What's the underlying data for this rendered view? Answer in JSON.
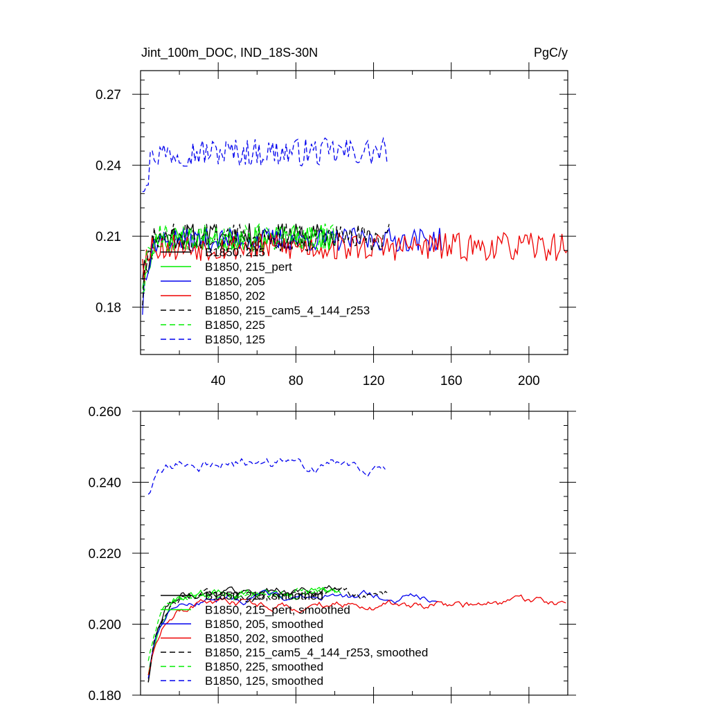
{
  "colors": {
    "black": "#000000",
    "green": "#00ee00",
    "blue": "#0000ee",
    "red": "#ee0000"
  },
  "chart_data": [
    {
      "type": "line",
      "title": "Jint_100m_DOC, IND_18S-30N",
      "units": "PgC/y",
      "xlim": [
        0,
        220
      ],
      "ylim": [
        0.16,
        0.28
      ],
      "x_ticks": [
        40,
        80,
        120,
        160,
        200
      ],
      "y_ticks": [
        0.18,
        0.21,
        0.24,
        0.27
      ],
      "y_ticklabels": [
        "0.18",
        "0.21",
        "0.24",
        "0.27"
      ],
      "legend_position": "lower-left",
      "series": [
        {
          "name": "B1850, 215",
          "color": "#000000",
          "dash": "solid",
          "n": 100,
          "start": 0.2,
          "level": 0.21,
          "noise": 0.0055,
          "seed": 11
        },
        {
          "name": "B1850, 215_pert",
          "color": "#00ee00",
          "dash": "solid",
          "n": 100,
          "start": 0.198,
          "level": 0.209,
          "noise": 0.0055,
          "seed": 23
        },
        {
          "name": "B1850, 205",
          "color": "#0000ee",
          "dash": "solid",
          "n": 155,
          "start": 0.192,
          "level": 0.2085,
          "noise": 0.005,
          "seed": 37
        },
        {
          "name": "B1850, 202",
          "color": "#ee0000",
          "dash": "solid",
          "n": 220,
          "start": 0.205,
          "level": 0.2055,
          "noise": 0.006,
          "seed": 53
        },
        {
          "name": "B1850, 215_cam5_4_144_r253",
          "color": "#000000",
          "dash": "dashed",
          "n": 128,
          "start": 0.198,
          "level": 0.2095,
          "noise": 0.006,
          "seed": 71
        },
        {
          "name": "B1850, 225",
          "color": "#00ee00",
          "dash": "dashed",
          "n": 100,
          "start": 0.196,
          "level": 0.2095,
          "noise": 0.006,
          "seed": 89
        },
        {
          "name": "B1850, 125",
          "color": "#0000ee",
          "dash": "dashed",
          "n": 127,
          "start": 0.233,
          "level": 0.2455,
          "noise": 0.006,
          "seed": 97
        }
      ]
    },
    {
      "type": "line",
      "title": "",
      "xlim": [
        0,
        220
      ],
      "ylim": [
        0.18,
        0.26
      ],
      "x_ticks": [
        40,
        80,
        120,
        160,
        200
      ],
      "y_ticks": [
        0.18,
        0.2,
        0.22,
        0.24,
        0.26
      ],
      "y_ticklabels": [
        "0.180",
        "0.200",
        "0.220",
        "0.240",
        "0.260"
      ],
      "legend_position": "lower-left",
      "series": [
        {
          "name": "B1850, 215, smoothed",
          "color": "#000000",
          "dash": "solid",
          "start_x": 4,
          "n": 100,
          "start": 0.184,
          "level": 0.2095,
          "noise": 0.0018,
          "seed": 111
        },
        {
          "name": "B1850, 215_pert, smoothed",
          "color": "#00ee00",
          "dash": "solid",
          "start_x": 4,
          "n": 100,
          "start": 0.186,
          "level": 0.2085,
          "noise": 0.0018,
          "seed": 123
        },
        {
          "name": "B1850, 205, smoothed",
          "color": "#0000ee",
          "dash": "solid",
          "start_x": 4,
          "n": 150,
          "start": 0.185,
          "level": 0.2075,
          "noise": 0.0015,
          "seed": 137
        },
        {
          "name": "B1850, 202, smoothed",
          "color": "#ee0000",
          "dash": "solid",
          "start_x": 4,
          "n": 216,
          "start": 0.186,
          "level": 0.2055,
          "noise": 0.0016,
          "seed": 153
        },
        {
          "name": "B1850, 215_cam5_4_144_r253, smoothed",
          "color": "#000000",
          "dash": "dashed",
          "start_x": 4,
          "n": 124,
          "start": 0.184,
          "level": 0.2085,
          "noise": 0.0018,
          "seed": 171
        },
        {
          "name": "B1850, 225, smoothed",
          "color": "#00ee00",
          "dash": "dashed",
          "start_x": 4,
          "n": 98,
          "start": 0.19,
          "level": 0.2085,
          "noise": 0.0018,
          "seed": 189
        },
        {
          "name": "B1850, 125, smoothed",
          "color": "#0000ee",
          "dash": "dashed",
          "start_x": 4,
          "n": 123,
          "start": 0.237,
          "level": 0.2455,
          "noise": 0.0022,
          "seed": 197
        }
      ]
    }
  ]
}
